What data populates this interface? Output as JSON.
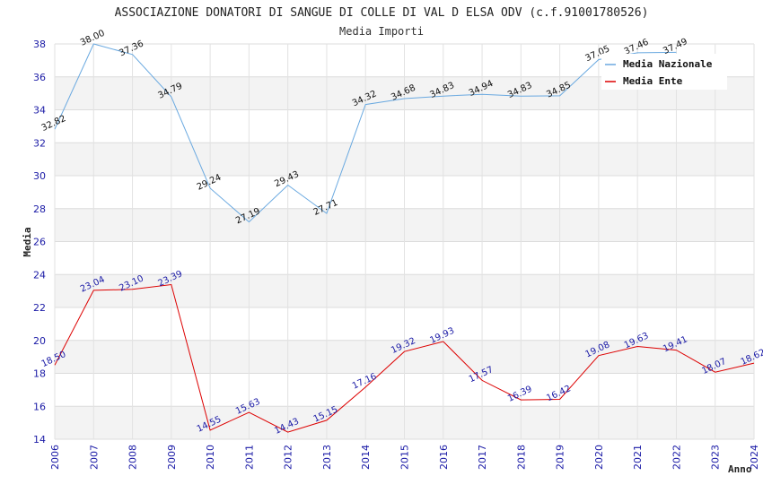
{
  "chart_data": {
    "type": "line",
    "title": "ASSOCIAZIONE DONATORI DI SANGUE DI COLLE DI VAL D ELSA ODV (c.f.91001780526)",
    "subtitle": "Media Importi",
    "xlabel": "Anno",
    "ylabel": "Media",
    "ylim": [
      14,
      38
    ],
    "yticks": [
      14,
      16,
      18,
      20,
      22,
      24,
      26,
      28,
      30,
      32,
      34,
      36,
      38
    ],
    "grid": true,
    "legend_position": "top-right",
    "x": [
      "2006",
      "2007",
      "2008",
      "2009",
      "2010",
      "2011",
      "2012",
      "2013",
      "2014",
      "2015",
      "2016",
      "2017",
      "2018",
      "2019",
      "2020",
      "2021",
      "2022",
      "2023",
      "2024"
    ],
    "series": [
      {
        "name": "Media Nazionale",
        "color": "#6aa9e0",
        "label_color": "#111111",
        "values": [
          32.82,
          38.0,
          37.36,
          34.79,
          29.24,
          27.19,
          29.43,
          27.71,
          34.32,
          34.68,
          34.83,
          34.94,
          34.83,
          34.85,
          37.05,
          37.46,
          37.49,
          null,
          null
        ],
        "labels": [
          "32.82",
          "38.00",
          "37.36",
          "34.79",
          "29.24",
          "27.19",
          "29.43",
          "27.71",
          "34.32",
          "34.68",
          "34.83",
          "34.94",
          "34.83",
          "34.85",
          "37.05",
          "37.46",
          "37.49",
          "",
          ""
        ]
      },
      {
        "name": "Media Ente",
        "color": "#dd0000",
        "label_color": "#1a1aa6",
        "values": [
          18.5,
          23.04,
          23.1,
          23.39,
          14.55,
          15.63,
          14.43,
          15.15,
          17.16,
          19.32,
          19.93,
          17.57,
          16.39,
          16.42,
          19.08,
          19.63,
          19.41,
          18.07,
          18.62
        ],
        "labels": [
          "18.50",
          "23.04",
          "23.10",
          "23.39",
          "14.55",
          "15.63",
          "14.43",
          "15.15",
          "17.16",
          "19.32",
          "19.93",
          "17.57",
          "16.39",
          "16.42",
          "19.08",
          "19.63",
          "19.41",
          "18.07",
          "18.62"
        ]
      }
    ]
  }
}
